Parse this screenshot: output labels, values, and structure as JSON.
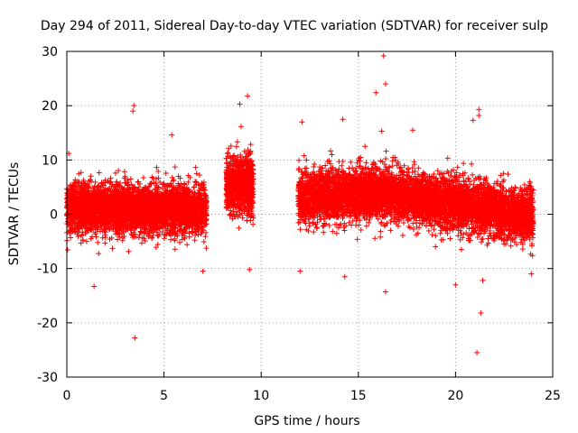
{
  "chart_data": {
    "type": "scatter",
    "title": "Day 294 of 2011, Sidereal Day-to-day VTEC variation (SDTVAR) for receiver sulp",
    "xlabel": "GPS time / hours",
    "ylabel": "SDTVAR / TECUs",
    "xlim": [
      0,
      25
    ],
    "ylim": [
      -30,
      30
    ],
    "x_ticks": [
      "0",
      "5",
      "10",
      "15",
      "20",
      "25"
    ],
    "x_tick_values": [
      0,
      5,
      10,
      15,
      20,
      25
    ],
    "y_ticks": [
      "30",
      "20",
      "10",
      "0",
      "-10",
      "-20",
      "-30"
    ],
    "y_tick_values": [
      30,
      20,
      10,
      0,
      -10,
      -20,
      -30
    ],
    "grid": true,
    "marker": "+",
    "series_color": "#ff0000",
    "series": [
      {
        "name": "SDTVAR",
        "segments": [
          {
            "x_range": [
              0.0,
              7.2
            ],
            "center": 1.0,
            "spread": 3.0,
            "n": 3800
          },
          {
            "x_range": [
              8.2,
              9.6
            ],
            "center": 5.5,
            "spread": 3.5,
            "n": 900
          },
          {
            "x_range": [
              11.9,
              24.0
            ],
            "center_start": 3.0,
            "center_mid": 4.0,
            "center_end": -0.5,
            "spread": 3.2,
            "n": 6000
          }
        ],
        "outliers": [
          {
            "x": 3.45,
            "y": 20.0
          },
          {
            "x": 3.4,
            "y": 19.0
          },
          {
            "x": 3.5,
            "y": -22.8
          },
          {
            "x": 1.4,
            "y": -13.3
          },
          {
            "x": 5.4,
            "y": 14.6
          },
          {
            "x": 9.3,
            "y": 21.8
          },
          {
            "x": 8.9,
            "y": 20.3
          },
          {
            "x": 9.4,
            "y": -10.2
          },
          {
            "x": 16.3,
            "y": 29.2
          },
          {
            "x": 16.4,
            "y": 24.0
          },
          {
            "x": 15.9,
            "y": 22.4
          },
          {
            "x": 16.2,
            "y": 15.3
          },
          {
            "x": 14.2,
            "y": 17.5
          },
          {
            "x": 12.1,
            "y": 17.0
          },
          {
            "x": 16.4,
            "y": -14.3
          },
          {
            "x": 14.3,
            "y": -11.5
          },
          {
            "x": 17.8,
            "y": 15.5
          },
          {
            "x": 21.2,
            "y": 19.3
          },
          {
            "x": 21.2,
            "y": 18.2
          },
          {
            "x": 20.9,
            "y": 17.3
          },
          {
            "x": 21.3,
            "y": -18.2
          },
          {
            "x": 21.1,
            "y": -25.5
          },
          {
            "x": 20.0,
            "y": -13.0
          },
          {
            "x": 21.4,
            "y": -12.2
          },
          {
            "x": 23.9,
            "y": -11.0
          },
          {
            "x": 0.1,
            "y": 11.2
          },
          {
            "x": 12.0,
            "y": -10.5
          },
          {
            "x": 7.0,
            "y": -10.5
          }
        ]
      }
    ]
  }
}
